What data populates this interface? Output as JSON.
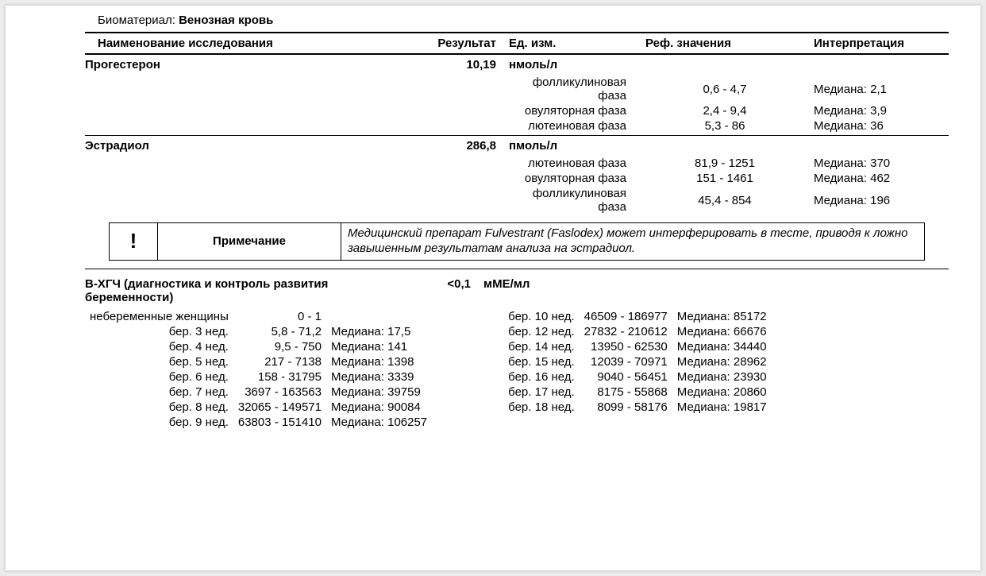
{
  "biomaterial": {
    "label": "Биоматериал:",
    "value": "Венозная кровь"
  },
  "headers": {
    "name": "Наименование исследования",
    "result": "Результат",
    "unit": "Ед. изм.",
    "ref": "Реф. значения",
    "interp": "Интерпретация"
  },
  "tests": [
    {
      "name": "Прогестерон",
      "result": "10,19",
      "unit": "нмоль/л",
      "phases": [
        {
          "phase": "фолликулиновая фаза",
          "ref": "0,6 - 4,7",
          "interp": "Медиана: 2,1"
        },
        {
          "phase": "овуляторная фаза",
          "ref": "2,4 - 9,4",
          "interp": "Медиана: 3,9"
        },
        {
          "phase": "лютеиновая фаза",
          "ref": "5,3 - 86",
          "interp": "Медиана: 36"
        }
      ]
    },
    {
      "name": "Эстрадиол",
      "result": "286,8",
      "unit": "пмоль/л",
      "phases": [
        {
          "phase": "лютеиновая фаза",
          "ref": "81,9 - 1251",
          "interp": "Медиана: 370"
        },
        {
          "phase": "овуляторная фаза",
          "ref": "151 - 1461",
          "interp": "Медиана: 462"
        },
        {
          "phase": "фолликулиновая фаза",
          "ref": "45,4 - 854",
          "interp": "Медиана: 196"
        }
      ]
    }
  ],
  "note": {
    "mark": "!",
    "label": "Примечание",
    "text": "Медицинский препарат Fulvestrant (Faslodex) может интерферировать в тесте, приводя к ложно завышенным результатам анализа на эстрадиол."
  },
  "hcg": {
    "name": "В-ХГЧ (диагностика и контроль развития беременности)",
    "result": "<0,1",
    "unit": "мМЕ/мл",
    "left": [
      {
        "label": "небеременные женщины",
        "range": "0 - 1",
        "median": ""
      },
      {
        "label": "бер. 3 нед.",
        "range": "5,8 - 71,2",
        "median": "Медиана: 17,5"
      },
      {
        "label": "бер. 4 нед.",
        "range": "9,5 - 750",
        "median": "Медиана: 141"
      },
      {
        "label": "бер. 5 нед.",
        "range": "217 - 7138",
        "median": "Медиана: 1398"
      },
      {
        "label": "бер. 6 нед.",
        "range": "158 - 31795",
        "median": "Медиана: 3339"
      },
      {
        "label": "бер. 7 нед.",
        "range": "3697 - 163563",
        "median": "Медиана: 39759"
      },
      {
        "label": "бер. 8 нед.",
        "range": "32065 - 149571",
        "median": "Медиана: 90084"
      },
      {
        "label": "бер. 9 нед.",
        "range": "63803 - 151410",
        "median": "Медиана: 106257"
      }
    ],
    "right": [
      {
        "label": "бер. 10 нед.",
        "range": "46509 - 186977",
        "median": "Медиана: 85172"
      },
      {
        "label": "бер. 12 нед.",
        "range": "27832 - 210612",
        "median": "Медиана: 66676"
      },
      {
        "label": "бер. 14 нед.",
        "range": "13950 - 62530",
        "median": "Медиана: 34440"
      },
      {
        "label": "бер. 15 нед.",
        "range": "12039 - 70971",
        "median": "Медиана: 28962"
      },
      {
        "label": "бер. 16 нед.",
        "range": "9040 - 56451",
        "median": "Медиана: 23930"
      },
      {
        "label": "бер. 17 нед.",
        "range": "8175 - 55868",
        "median": "Медиана: 20860"
      },
      {
        "label": "бер. 18 нед.",
        "range": "8099 - 58176",
        "median": "Медиана: 19817"
      }
    ]
  }
}
